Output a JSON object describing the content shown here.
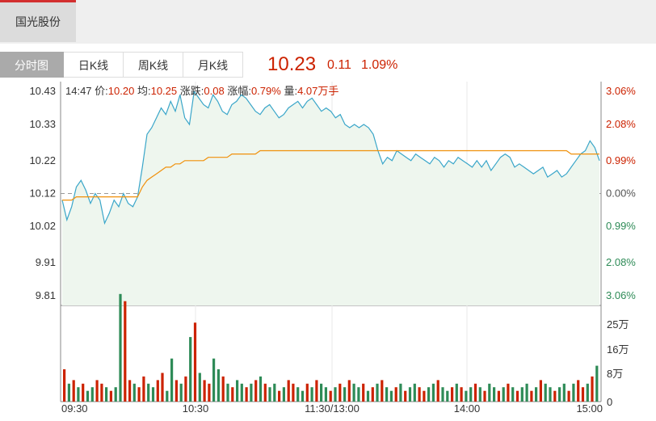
{
  "stock_tab": "国光股份",
  "tabs": [
    "分时图",
    "日K线",
    "周K线",
    "月K线"
  ],
  "quote": {
    "price": "10.23",
    "change": "0.11",
    "percent": "1.09%"
  },
  "info": {
    "time": "14:47",
    "price_label": "价:",
    "price": "10.20",
    "avg_label": "均:",
    "avg": "10.25",
    "change_label": "涨跌:",
    "change": "0.08",
    "pct_label": "涨幅:",
    "pct": "0.79%",
    "vol_label": "量:",
    "vol": "4.07万手"
  },
  "colors": {
    "up": "#cc2200",
    "down": "#2e8b57",
    "price_line": "#3aa6c9",
    "avg_line": "#f0900a",
    "fill": "#eef6ee"
  },
  "chart_data": {
    "type": "line",
    "x_ticks": [
      "09:30",
      "10:30",
      "11:30/13:00",
      "14:00",
      "15:00"
    ],
    "y_ticks": [
      "10.43",
      "10.33",
      "10.22",
      "10.12",
      "10.02",
      "9.91",
      "9.81"
    ],
    "pct_ticks_up": [
      "3.06%",
      "2.08%",
      "0.99%"
    ],
    "pct_zero": "0.00%",
    "pct_ticks_down": [
      "0.99%",
      "2.08%",
      "3.06%"
    ],
    "vol_ticks": [
      "25万",
      "16万",
      "8万",
      "0"
    ],
    "ylim": [
      9.78,
      10.46
    ],
    "prev_close": 10.12,
    "vol_max": 25,
    "price": [
      10.1,
      10.04,
      10.08,
      10.14,
      10.16,
      10.13,
      10.09,
      10.12,
      10.1,
      10.03,
      10.06,
      10.1,
      10.08,
      10.12,
      10.09,
      10.08,
      10.11,
      10.2,
      10.3,
      10.32,
      10.35,
      10.38,
      10.36,
      10.4,
      10.37,
      10.42,
      10.35,
      10.33,
      10.43,
      10.41,
      10.39,
      10.38,
      10.42,
      10.4,
      10.37,
      10.36,
      10.39,
      10.4,
      10.42,
      10.41,
      10.39,
      10.37,
      10.36,
      10.38,
      10.39,
      10.37,
      10.35,
      10.36,
      10.38,
      10.39,
      10.4,
      10.38,
      10.4,
      10.41,
      10.39,
      10.37,
      10.38,
      10.37,
      10.35,
      10.36,
      10.33,
      10.32,
      10.33,
      10.32,
      10.33,
      10.32,
      10.3,
      10.25,
      10.21,
      10.23,
      10.22,
      10.25,
      10.24,
      10.23,
      10.22,
      10.24,
      10.23,
      10.22,
      10.21,
      10.23,
      10.22,
      10.2,
      10.22,
      10.21,
      10.23,
      10.22,
      10.21,
      10.2,
      10.22,
      10.2,
      10.22,
      10.19,
      10.21,
      10.23,
      10.24,
      10.23,
      10.2,
      10.21,
      10.2,
      10.19,
      10.18,
      10.19,
      10.2,
      10.17,
      10.18,
      10.19,
      10.17,
      10.18,
      10.2,
      10.22,
      10.24,
      10.25,
      10.28,
      10.26,
      10.22
    ],
    "avg": [
      10.1,
      10.1,
      10.1,
      10.11,
      10.11,
      10.11,
      10.11,
      10.11,
      10.11,
      10.11,
      10.11,
      10.11,
      10.11,
      10.11,
      10.11,
      10.11,
      10.11,
      10.14,
      10.16,
      10.17,
      10.18,
      10.19,
      10.2,
      10.2,
      10.21,
      10.21,
      10.22,
      10.22,
      10.22,
      10.22,
      10.22,
      10.23,
      10.23,
      10.23,
      10.23,
      10.23,
      10.24,
      10.24,
      10.24,
      10.24,
      10.24,
      10.24,
      10.25,
      10.25,
      10.25,
      10.25,
      10.25,
      10.25,
      10.25,
      10.25,
      10.25,
      10.25,
      10.25,
      10.25,
      10.25,
      10.25,
      10.25,
      10.25,
      10.25,
      10.25,
      10.25,
      10.25,
      10.25,
      10.25,
      10.25,
      10.25,
      10.25,
      10.25,
      10.25,
      10.25,
      10.25,
      10.25,
      10.25,
      10.25,
      10.25,
      10.25,
      10.25,
      10.25,
      10.25,
      10.25,
      10.25,
      10.25,
      10.25,
      10.25,
      10.25,
      10.25,
      10.25,
      10.25,
      10.25,
      10.25,
      10.25,
      10.25,
      10.25,
      10.25,
      10.25,
      10.25,
      10.25,
      10.25,
      10.25,
      10.25,
      10.25,
      10.25,
      10.25,
      10.25,
      10.25,
      10.25,
      10.25,
      10.25,
      10.24,
      10.24,
      10.24,
      10.24,
      10.24,
      10.24,
      10.24
    ],
    "volume": [
      9,
      5,
      6,
      4,
      5,
      3,
      4,
      6,
      5,
      4,
      3,
      4,
      30,
      28,
      6,
      5,
      4,
      7,
      5,
      4,
      6,
      8,
      3,
      12,
      6,
      5,
      7,
      18,
      22,
      8,
      6,
      5,
      12,
      9,
      7,
      5,
      4,
      6,
      5,
      4,
      5,
      6,
      7,
      5,
      4,
      5,
      3,
      4,
      6,
      5,
      4,
      3,
      5,
      4,
      6,
      5,
      4,
      3,
      4,
      5,
      4,
      6,
      5,
      4,
      5,
      3,
      4,
      5,
      6,
      4,
      3,
      4,
      5,
      3,
      4,
      5,
      4,
      3,
      4,
      5,
      6,
      4,
      3,
      4,
      5,
      4,
      3,
      4,
      5,
      4,
      3,
      5,
      4,
      3,
      4,
      5,
      4,
      3,
      4,
      5,
      3,
      4,
      6,
      5,
      4,
      3,
      4,
      5,
      3,
      5,
      6,
      4,
      5,
      7,
      10
    ],
    "vol_dir": [
      1,
      0,
      1,
      0,
      1,
      0,
      0,
      1,
      1,
      0,
      1,
      0,
      0,
      1,
      1,
      0,
      1,
      1,
      0,
      0,
      1,
      1,
      0,
      0,
      1,
      0,
      1,
      0,
      1,
      0,
      1,
      1,
      0,
      0,
      1,
      0,
      1,
      0,
      0,
      1,
      0,
      1,
      0,
      1,
      0,
      0,
      1,
      0,
      1,
      1,
      0,
      0,
      1,
      0,
      1,
      0,
      0,
      1,
      0,
      1,
      0,
      1,
      0,
      0,
      1,
      0,
      1,
      0,
      1,
      0,
      0,
      1,
      0,
      1,
      0,
      0,
      1,
      1,
      0,
      0,
      1,
      0,
      0,
      1,
      0,
      1,
      0,
      0,
      1,
      0,
      1,
      0,
      0,
      1,
      0,
      1,
      0,
      1,
      0,
      0,
      1,
      0,
      1,
      0,
      0,
      1,
      0,
      0,
      1,
      0,
      1,
      1,
      0,
      1,
      0
    ]
  }
}
